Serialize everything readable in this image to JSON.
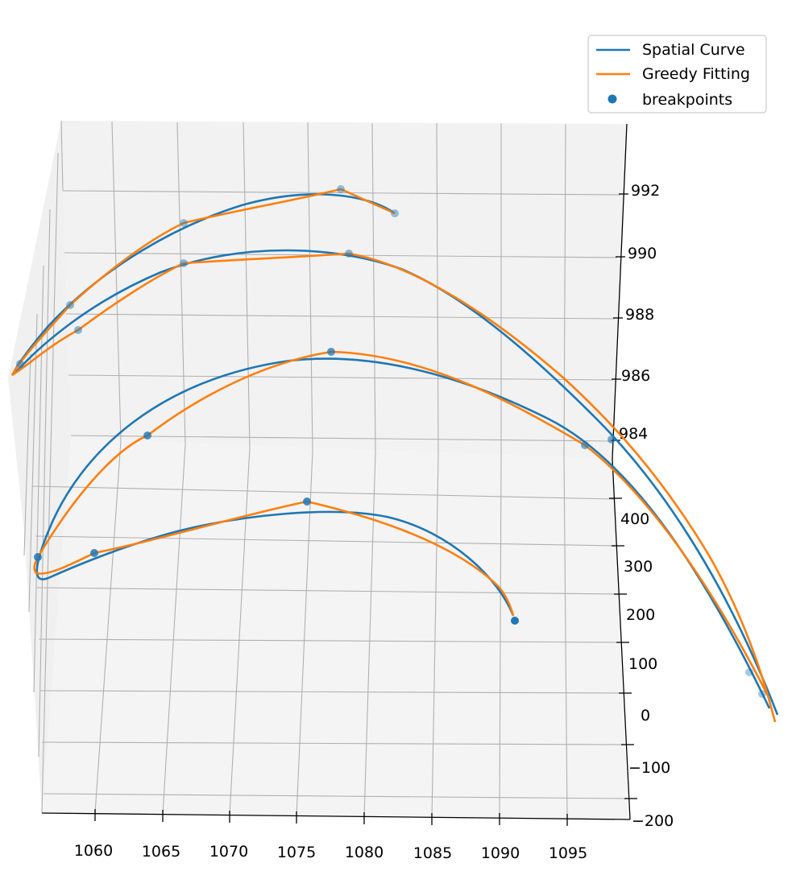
{
  "chart_data": {
    "type": "line",
    "projection": "3d",
    "legend": {
      "placement": "top-right",
      "entries": [
        {
          "label": "Spatial Curve",
          "color": "#1f77b4",
          "kind": "line"
        },
        {
          "label": "Greedy Fitting",
          "color": "#ff7f0e",
          "kind": "line"
        },
        {
          "label": "breakpoints",
          "color": "#1f77b4",
          "kind": "marker"
        }
      ]
    },
    "axes": {
      "x": {
        "ticks": [
          "1060",
          "1065",
          "1070",
          "1075",
          "1080",
          "1085",
          "1090",
          "1095"
        ]
      },
      "y": {
        "ticks": [
          "400",
          "300",
          "200",
          "100",
          "0",
          "−100",
          "−200"
        ]
      },
      "z": {
        "ticks": [
          "992",
          "990",
          "988",
          "986",
          "984"
        ]
      }
    },
    "grid": true,
    "series": [
      {
        "name": "Spatial Curve",
        "color": "#1f77b4"
      },
      {
        "name": "Greedy Fitting",
        "color": "#ff7f0e"
      },
      {
        "name": "breakpoints",
        "color": "#1f77b4"
      }
    ]
  }
}
